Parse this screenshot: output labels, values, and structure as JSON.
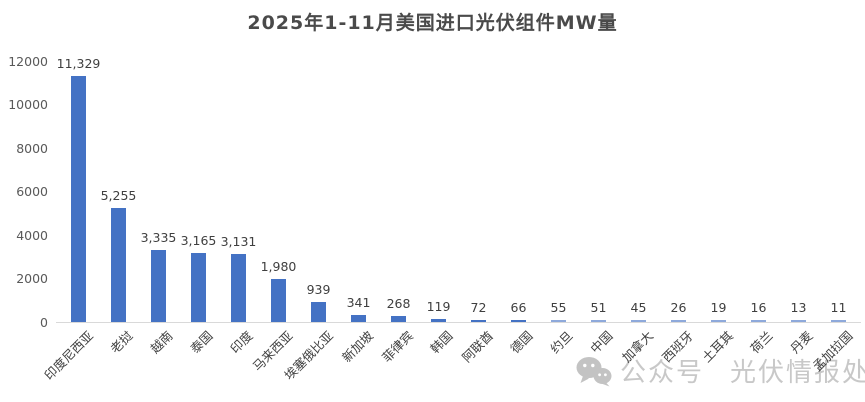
{
  "chart_data": {
    "type": "bar",
    "title": "2025年1-11月美国进口光伏组件MW量",
    "categories": [
      "印度尼西亚",
      "老挝",
      "越南",
      "泰国",
      "印度",
      "马来西亚",
      "埃塞俄比亚",
      "新加坡",
      "菲律宾",
      "韩国",
      "阿联酋",
      "德国",
      "约旦",
      "中国",
      "加拿大",
      "西班牙",
      "土耳其",
      "荷兰",
      "丹麦",
      "孟加拉国"
    ],
    "values": [
      11329,
      5255,
      3335,
      3165,
      3131,
      1980,
      939,
      341,
      268,
      119,
      72,
      66,
      55,
      51,
      45,
      26,
      19,
      16,
      13,
      11
    ],
    "value_labels": [
      "11,329",
      "5,255",
      "3,335",
      "3,165",
      "3,131",
      "1,980",
      "939",
      "341",
      "268",
      "119",
      "72",
      "66",
      "55",
      "51",
      "45",
      "26",
      "19",
      "16",
      "13",
      "11"
    ],
    "xlabel": "",
    "ylabel": "",
    "ylim": [
      0,
      12000
    ],
    "y_ticks": [
      12000,
      10000,
      8000,
      6000,
      4000,
      2000,
      0
    ],
    "grid": false,
    "legend": false,
    "bar_color": "#4472C4",
    "bar_color_light": "#8EA9DB",
    "axis_line_color": "#d9d9d9"
  },
  "watermark": {
    "icon": "wechat-icon",
    "text_left": "公众号",
    "text_right": "光伏情报处",
    "color": "#c8c8c8"
  }
}
